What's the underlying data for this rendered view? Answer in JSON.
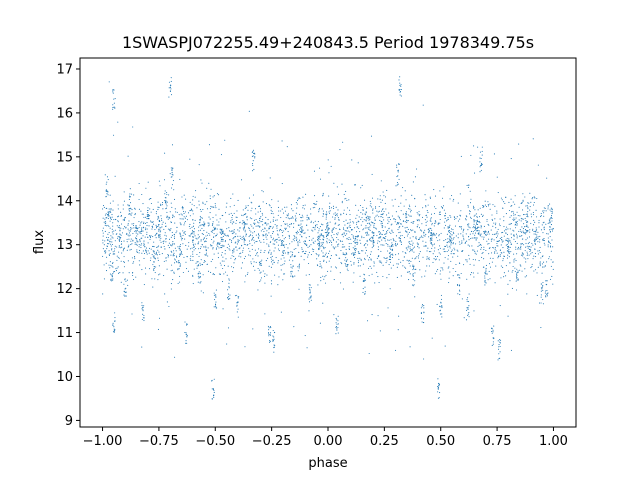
{
  "chart_data": {
    "type": "scatter",
    "title": "1SWASPJ072255.49+240843.5 Period 1978349.75s",
    "xlabel": "phase",
    "ylabel": "flux",
    "xlim": [
      -1.1,
      1.1
    ],
    "ylim": [
      8.85,
      17.25
    ],
    "xticks": [
      -1.0,
      -0.75,
      -0.5,
      -0.25,
      0.0,
      0.25,
      0.5,
      0.75,
      1.0
    ],
    "xtick_labels": [
      "−1.00",
      "−0.75",
      "−0.50",
      "−0.25",
      "0.00",
      "0.25",
      "0.50",
      "0.75",
      "1.00"
    ],
    "yticks": [
      9,
      10,
      11,
      12,
      13,
      14,
      15,
      16,
      17
    ],
    "ytick_labels": [
      "9",
      "10",
      "11",
      "12",
      "13",
      "14",
      "15",
      "16",
      "17"
    ],
    "grid": false,
    "marker_color": "#1f77b4",
    "series": [
      {
        "x_range": [
          -1.0,
          1.0
        ],
        "core_y": [
          12.2,
          14.2
        ],
        "points": [
          [
            -0.98,
            14.3
          ],
          [
            -0.97,
            13.7
          ],
          [
            -0.96,
            12.4
          ],
          [
            -0.95,
            11.2
          ],
          [
            -0.95,
            16.3
          ],
          [
            -0.92,
            13.1
          ],
          [
            -0.9,
            12.0
          ],
          [
            -0.88,
            13.9
          ],
          [
            -0.85,
            13.2
          ],
          [
            -0.82,
            11.5
          ],
          [
            -0.8,
            13.6
          ],
          [
            -0.77,
            12.6
          ],
          [
            -0.75,
            13.4
          ],
          [
            -0.72,
            14.0
          ],
          [
            -0.7,
            16.6
          ],
          [
            -0.69,
            14.5
          ],
          [
            -0.66,
            12.8
          ],
          [
            -0.63,
            11.0
          ],
          [
            -0.6,
            13.2
          ],
          [
            -0.57,
            12.3
          ],
          [
            -0.54,
            13.0
          ],
          [
            -0.51,
            9.7
          ],
          [
            -0.5,
            11.8
          ],
          [
            -0.47,
            13.1
          ],
          [
            -0.44,
            12.0
          ],
          [
            -0.4,
            11.6
          ],
          [
            -0.37,
            13.3
          ],
          [
            -0.33,
            14.9
          ],
          [
            -0.3,
            12.4
          ],
          [
            -0.26,
            11.0
          ],
          [
            -0.24,
            10.8
          ],
          [
            -0.2,
            13.0
          ],
          [
            -0.16,
            12.5
          ],
          [
            -0.12,
            13.4
          ],
          [
            -0.08,
            11.9
          ],
          [
            -0.04,
            13.1
          ],
          [
            0.0,
            13.3
          ],
          [
            0.04,
            11.2
          ],
          [
            0.08,
            12.7
          ],
          [
            0.12,
            13.0
          ],
          [
            0.16,
            12.1
          ],
          [
            0.2,
            13.2
          ],
          [
            0.24,
            13.6
          ],
          [
            0.28,
            12.8
          ],
          [
            0.31,
            14.6
          ],
          [
            0.32,
            16.6
          ],
          [
            0.35,
            13.5
          ],
          [
            0.38,
            12.3
          ],
          [
            0.42,
            11.4
          ],
          [
            0.46,
            13.1
          ],
          [
            0.49,
            9.7
          ],
          [
            0.5,
            11.6
          ],
          [
            0.54,
            13.2
          ],
          [
            0.58,
            12.1
          ],
          [
            0.62,
            11.5
          ],
          [
            0.66,
            13.4
          ],
          [
            0.68,
            14.9
          ],
          [
            0.7,
            12.3
          ],
          [
            0.73,
            10.9
          ],
          [
            0.76,
            10.6
          ],
          [
            0.8,
            13.0
          ],
          [
            0.84,
            12.2
          ],
          [
            0.88,
            13.5
          ],
          [
            0.92,
            13.1
          ],
          [
            0.95,
            11.9
          ],
          [
            0.97,
            12.0
          ],
          [
            0.99,
            13.6
          ]
        ]
      }
    ]
  }
}
